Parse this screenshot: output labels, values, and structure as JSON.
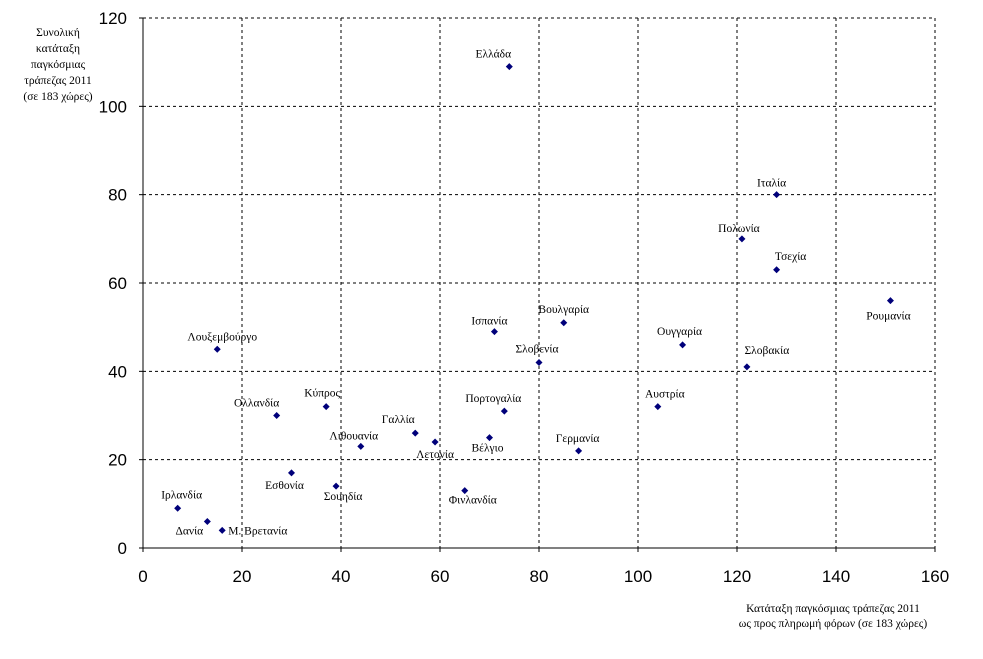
{
  "chart_data": {
    "type": "scatter",
    "title": "",
    "ylabel_lines": [
      "Συνολική",
      "κατάταξη",
      "παγκόσμιας",
      "τράπεζας 2011",
      "(σε 183 χώρες)"
    ],
    "xlabel_lines": [
      "Κατάταξη παγκόσμιας τράπεζας 2011",
      "ως προς πληρωμή φόρων (σε 183 χώρες)"
    ],
    "xlim": [
      0,
      160
    ],
    "ylim": [
      0,
      120
    ],
    "xticks": [
      "0",
      "20",
      "40",
      "60",
      "80",
      "100",
      "120",
      "140",
      "160"
    ],
    "yticks": [
      "0",
      "20",
      "40",
      "60",
      "80",
      "100",
      "120"
    ],
    "grid": true,
    "marker_color": "#00007a",
    "points": [
      {
        "label": "Ελλάδα",
        "x": 74,
        "y": 109
      },
      {
        "label": "Ιταλία",
        "x": 128,
        "y": 80
      },
      {
        "label": "Πολωνία",
        "x": 121,
        "y": 70
      },
      {
        "label": "Τσεχία",
        "x": 128,
        "y": 63
      },
      {
        "label": "Ρουμανία",
        "x": 151,
        "y": 56
      },
      {
        "label": "Ουγγαρία",
        "x": 109,
        "y": 46
      },
      {
        "label": "Σλοβακία",
        "x": 122,
        "y": 41
      },
      {
        "label": "Βουλγαρία",
        "x": 85,
        "y": 51
      },
      {
        "label": "Ισπανία",
        "x": 71,
        "y": 49
      },
      {
        "label": "Σλοβενία",
        "x": 80,
        "y": 42
      },
      {
        "label": "Λουξεμβούργο",
        "x": 15,
        "y": 45
      },
      {
        "label": "Αυστρία",
        "x": 104,
        "y": 32
      },
      {
        "label": "Πορτογαλία",
        "x": 73,
        "y": 31
      },
      {
        "label": "Κύπρος",
        "x": 37,
        "y": 32
      },
      {
        "label": "Ολλανδία",
        "x": 27,
        "y": 30
      },
      {
        "label": "Γαλλία",
        "x": 55,
        "y": 26
      },
      {
        "label": "Λιθουανία",
        "x": 44,
        "y": 23
      },
      {
        "label": "Λετονία",
        "x": 59,
        "y": 24
      },
      {
        "label": "Βέλγιο",
        "x": 70,
        "y": 25
      },
      {
        "label": "Γερμανία",
        "x": 88,
        "y": 22
      },
      {
        "label": "Εσθονία",
        "x": 30,
        "y": 17
      },
      {
        "label": "Σουηδία",
        "x": 39,
        "y": 14
      },
      {
        "label": "Φινλανδία",
        "x": 65,
        "y": 13
      },
      {
        "label": "Ιρλανδία",
        "x": 7,
        "y": 9
      },
      {
        "label": "Δανία",
        "x": 13,
        "y": 6
      },
      {
        "label": "Μ. Βρετανία",
        "x": 16,
        "y": 4
      }
    ]
  }
}
